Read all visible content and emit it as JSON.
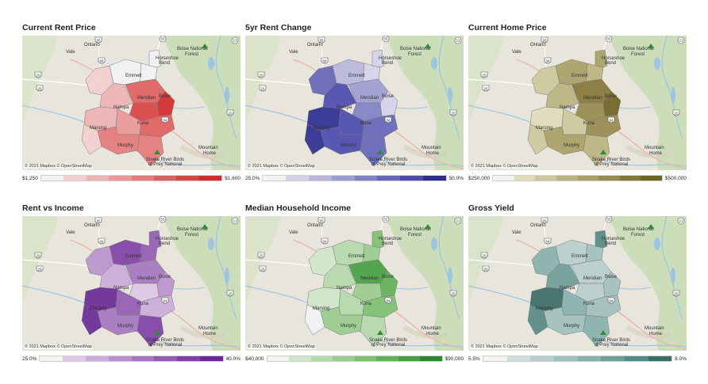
{
  "attribution": "© 2021 Mapbox © OpenStreetMap",
  "place_labels": {
    "vale": "Vale",
    "ontario": "Ontario",
    "boise_forest_1": "Boise National",
    "boise_forest_2": "Forest",
    "mountain_home_1": "Mountain",
    "mountain_home_2": "Home",
    "birds_1": "Snake River Birds",
    "birds_2": "of Prey National",
    "horseshoe_1": "Horseshoe",
    "horseshoe_2": "Bend",
    "emmett": "Emmett",
    "nampa": "Nampa",
    "meridian": "Meridian",
    "boise": "Boise",
    "murphy": "Murphy",
    "kuna": "Kuna",
    "marsing": "Marsing"
  },
  "road_shields": [
    "20",
    "26",
    "21",
    "84",
    "55",
    "95",
    "20",
    "84"
  ],
  "panels": [
    {
      "title": "Current Rent Price",
      "legend_min": "$1,250",
      "legend_max": "$1,600",
      "colors": [
        "#f2f2f2",
        "#f3cfcf",
        "#eeb3b3",
        "#e99797",
        "#e47b7b",
        "#df5f5f",
        "#d94343",
        "#d22a2a"
      ]
    },
    {
      "title": "5yr Rent Change",
      "legend_min": "25.0%",
      "legend_max": "50.0%",
      "colors": [
        "#f2f2f2",
        "#d2d2e8",
        "#b7b7dc",
        "#9c9cd0",
        "#8181c4",
        "#6666b8",
        "#4b4bac",
        "#2e2e90"
      ]
    },
    {
      "title": "Current Home Price",
      "legend_min": "$250,000",
      "legend_max": "$500,000",
      "colors": [
        "#f2f2f2",
        "#dedcb8",
        "#ccc89c",
        "#bab380",
        "#a89f66",
        "#968b4e",
        "#847738",
        "#6f6322"
      ]
    },
    {
      "title": "Rent vs Income",
      "legend_min": "25.0%",
      "legend_max": "40.0%",
      "colors": [
        "#f2f2f2",
        "#ddc8e6",
        "#cbadd9",
        "#b892cc",
        "#a577bf",
        "#925cb2",
        "#7f41a5",
        "#6a2996"
      ]
    },
    {
      "title": "Median Household Income",
      "legend_min": "$40,000",
      "legend_max": "$90,000",
      "colors": [
        "#f2f2f2",
        "#cfe6c9",
        "#b4d9ab",
        "#99cc8e",
        "#7ebf72",
        "#63b158",
        "#47a042",
        "#2f8431"
      ]
    },
    {
      "title": "Gross Yield",
      "legend_min": "5.5%",
      "legend_max": "8.0%",
      "colors": [
        "#f2f2f2",
        "#cfdedc",
        "#b7cfcc",
        "#9fc0bc",
        "#87b1ac",
        "#6f9e98",
        "#568a84",
        "#3b6d67"
      ]
    }
  ]
}
